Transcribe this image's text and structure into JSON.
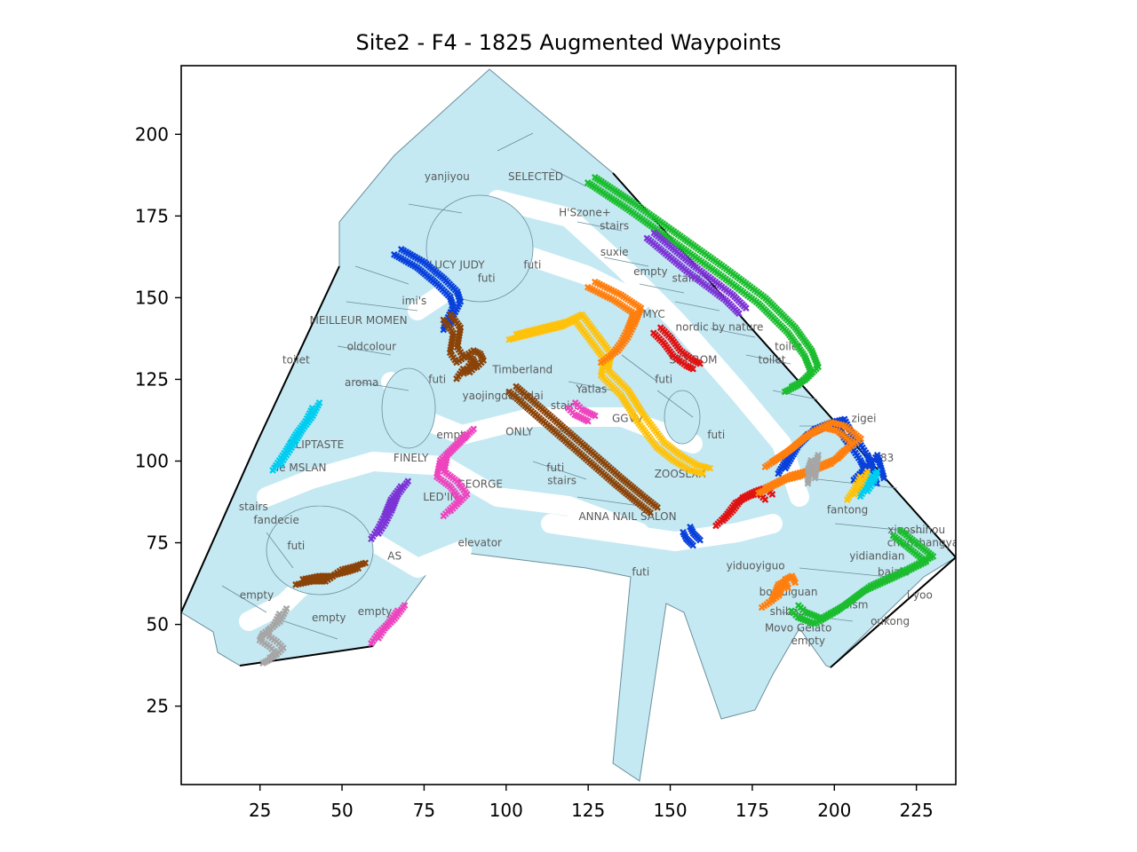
{
  "chart_data": {
    "type": "scatter",
    "title": "Site2 - F4 - 1825 Augmented Waypoints",
    "xlabel": "",
    "ylabel": "",
    "xlim": [
      1,
      237
    ],
    "ylim": [
      1,
      221
    ],
    "xticks": [
      25,
      50,
      75,
      100,
      125,
      150,
      175,
      200,
      225
    ],
    "yticks": [
      25,
      50,
      75,
      100,
      125,
      150,
      175,
      200
    ],
    "grid": false,
    "floor_color": "#c4e9f3",
    "floor_edge": "#6a8f9a",
    "shop_labels": [
      {
        "text": "yanjiyou",
        "x": 82,
        "y": 187
      },
      {
        "text": "SELECTED",
        "x": 109,
        "y": 187
      },
      {
        "text": "H'Szone+",
        "x": 124,
        "y": 176
      },
      {
        "text": "stairs",
        "x": 133,
        "y": 172
      },
      {
        "text": "suxie",
        "x": 133,
        "y": 164
      },
      {
        "text": "empty",
        "x": 144,
        "y": 158
      },
      {
        "text": "stairs",
        "x": 155,
        "y": 156
      },
      {
        "text": "LUCY JUDY",
        "x": 85,
        "y": 160
      },
      {
        "text": "futi",
        "x": 108,
        "y": 160
      },
      {
        "text": "futi",
        "x": 94,
        "y": 156
      },
      {
        "text": "imi's",
        "x": 72,
        "y": 149
      },
      {
        "text": "MEILLEUR MOMEN",
        "x": 55,
        "y": 143
      },
      {
        "text": "MYC",
        "x": 145,
        "y": 145
      },
      {
        "text": "nordic by nature",
        "x": 165,
        "y": 141
      },
      {
        "text": "oldcolour",
        "x": 59,
        "y": 135
      },
      {
        "text": "toilet",
        "x": 36,
        "y": 131
      },
      {
        "text": "SETIROM",
        "x": 157,
        "y": 131
      },
      {
        "text": "toilet",
        "x": 181,
        "y": 131
      },
      {
        "text": "toilet",
        "x": 186,
        "y": 135
      },
      {
        "text": "Timberland",
        "x": 105,
        "y": 128
      },
      {
        "text": "aroma",
        "x": 56,
        "y": 124
      },
      {
        "text": "futi",
        "x": 79,
        "y": 125
      },
      {
        "text": "futi",
        "x": 148,
        "y": 125
      },
      {
        "text": "yaojingdekudai",
        "x": 99,
        "y": 120
      },
      {
        "text": "Yatlas",
        "x": 126,
        "y": 122
      },
      {
        "text": "stairs",
        "x": 118,
        "y": 117
      },
      {
        "text": "GGVV",
        "x": 137,
        "y": 113
      },
      {
        "text": "zigei",
        "x": 209,
        "y": 113
      },
      {
        "text": "ONLY",
        "x": 104,
        "y": 109
      },
      {
        "text": "empty",
        "x": 84,
        "y": 108
      },
      {
        "text": "futi",
        "x": 164,
        "y": 108
      },
      {
        "text": "ULIPTASTE",
        "x": 42,
        "y": 105
      },
      {
        "text": "FINELY",
        "x": 71,
        "y": 101
      },
      {
        "text": "1983",
        "x": 214,
        "y": 101
      },
      {
        "text": "ne MSLAN",
        "x": 37,
        "y": 98
      },
      {
        "text": "futi",
        "x": 115,
        "y": 98
      },
      {
        "text": "ZOOSLXX",
        "x": 153,
        "y": 96
      },
      {
        "text": "stairs",
        "x": 117,
        "y": 94
      },
      {
        "text": "GEORGE",
        "x": 92,
        "y": 93
      },
      {
        "text": "LED'IN",
        "x": 80,
        "y": 89
      },
      {
        "text": "stairs",
        "x": 23,
        "y": 86
      },
      {
        "text": "fantong",
        "x": 204,
        "y": 85
      },
      {
        "text": "fandecie",
        "x": 30,
        "y": 82
      },
      {
        "text": "ANNA NAIL SALON",
        "x": 137,
        "y": 83
      },
      {
        "text": "xiaoshihou",
        "x": 225,
        "y": 79
      },
      {
        "text": "chunshangyan",
        "x": 228,
        "y": 75
      },
      {
        "text": "futi",
        "x": 36,
        "y": 74
      },
      {
        "text": "elevator",
        "x": 92,
        "y": 75
      },
      {
        "text": "yidiandian",
        "x": 213,
        "y": 71
      },
      {
        "text": "AS",
        "x": 66,
        "y": 71
      },
      {
        "text": "yiduoyiguo",
        "x": 176,
        "y": 68
      },
      {
        "text": "baizhi",
        "x": 218,
        "y": 66
      },
      {
        "text": "futi",
        "x": 141,
        "y": 66
      },
      {
        "text": "bowulguan",
        "x": 186,
        "y": 60
      },
      {
        "text": "i yoo",
        "x": 226,
        "y": 59
      },
      {
        "text": "empty",
        "x": 24,
        "y": 59
      },
      {
        "text": "lism",
        "x": 207,
        "y": 56
      },
      {
        "text": "empty",
        "x": 60,
        "y": 54
      },
      {
        "text": "shibazi",
        "x": 186,
        "y": 54
      },
      {
        "text": "oukong",
        "x": 217,
        "y": 51
      },
      {
        "text": "empty",
        "x": 46,
        "y": 52
      },
      {
        "text": "Movo Gelato",
        "x": 189,
        "y": 49
      },
      {
        "text": "empty",
        "x": 192,
        "y": 45
      }
    ],
    "series": [
      {
        "color": "#1bbd2f",
        "x": [
          126,
          138,
          152,
          166,
          178,
          187,
          192,
          194,
          190,
          186
        ],
        "y": [
          186,
          178,
          168,
          158,
          149,
          140,
          133,
          128,
          124,
          122
        ]
      },
      {
        "color": "#7c34d6",
        "x": [
          144,
          156,
          168,
          172
        ],
        "y": [
          169,
          159,
          150,
          146
        ]
      },
      {
        "color": "#1bbd2f",
        "x": [
          219,
          224,
          229,
          221,
          210,
          202,
          195,
          190,
          188
        ],
        "y": [
          78,
          74,
          70,
          66,
          61,
          55,
          51,
          53,
          55
        ]
      },
      {
        "color": "#0840dc",
        "x": [
          67,
          74,
          80,
          84,
          85,
          83,
          82
        ],
        "y": [
          164,
          160,
          155,
          151,
          148,
          144,
          141
        ]
      },
      {
        "color": "#8b4308",
        "x": [
          82,
          85,
          84,
          86,
          89,
          91,
          92,
          90,
          88,
          86
        ],
        "y": [
          144,
          140,
          134,
          131,
          133,
          132,
          130,
          128,
          129,
          126
        ]
      },
      {
        "color": "#ffc20a",
        "x": [
          102,
          110,
          118,
          122,
          128,
          131,
          130,
          136,
          141,
          147,
          152,
          157,
          161
        ],
        "y": [
          138,
          140,
          142,
          144,
          136,
          132,
          127,
          121,
          113,
          105,
          101,
          98,
          97
        ]
      },
      {
        "color": "#ff7f0e",
        "x": [
          126,
          134,
          140,
          138,
          136,
          133,
          130
        ],
        "y": [
          154,
          150,
          146,
          141,
          137,
          133,
          131
        ]
      },
      {
        "color": "#e01212",
        "x": [
          146,
          149,
          152,
          156,
          158
        ],
        "y": [
          140,
          137,
          133,
          130,
          129
        ]
      },
      {
        "color": "#8b4308",
        "x": [
          102,
          110,
          118,
          126,
          134,
          140,
          145
        ],
        "y": [
          122,
          115,
          108,
          101,
          94,
          89,
          85
        ]
      },
      {
        "color": "#ee45bf",
        "x": [
          120,
          122,
          124,
          126
        ],
        "y": [
          117,
          115,
          114,
          113
        ]
      },
      {
        "color": "#ee45bf",
        "x": [
          89,
          85,
          81,
          80,
          84,
          87,
          84,
          82
        ],
        "y": [
          109,
          105,
          101,
          96,
          93,
          89,
          86,
          84
        ]
      },
      {
        "color": "#00cdf0",
        "x": [
          42,
          40,
          37,
          34,
          32,
          30
        ],
        "y": [
          117,
          113,
          109,
          104,
          101,
          98
        ]
      },
      {
        "color": "#7c34d6",
        "x": [
          69,
          66,
          64,
          62,
          60
        ],
        "y": [
          93,
          89,
          84,
          80,
          77
        ]
      },
      {
        "color": "#8b4308",
        "x": [
          37,
          42,
          46,
          49,
          53,
          56
        ],
        "y": [
          63,
          64,
          64,
          66,
          67,
          68
        ]
      },
      {
        "color": "#ee45bf",
        "x": [
          68,
          65,
          62,
          60
        ],
        "y": [
          55,
          51,
          48,
          45
        ]
      },
      {
        "color": "#a6a6a6",
        "x": [
          32,
          30,
          27,
          26,
          29,
          31,
          29,
          27
        ],
        "y": [
          54,
          50,
          48,
          46,
          44,
          42,
          40,
          39
        ]
      },
      {
        "color": "#e01212",
        "x": [
          165,
          168,
          171,
          175,
          178,
          180
        ],
        "y": [
          81,
          84,
          88,
          90,
          91,
          89
        ]
      },
      {
        "color": "#0840dc",
        "x": [
          155,
          156,
          157,
          158
        ],
        "y": [
          79,
          77,
          76,
          75
        ]
      },
      {
        "color": "#ff7f0e",
        "x": [
          179,
          182,
          184,
          186,
          187
        ],
        "y": [
          56,
          58,
          63,
          64,
          62
        ]
      },
      {
        "color": "#0840dc",
        "x": [
          184,
          188,
          193,
          198,
          202,
          204,
          207,
          209,
          210
        ],
        "y": [
          97,
          104,
          109,
          111,
          112,
          108,
          104,
          101,
          99
        ]
      },
      {
        "color": "#ff7f0e",
        "x": [
          180,
          186,
          192,
          198,
          202,
          207,
          204,
          200,
          195,
          190,
          186,
          182,
          178
        ],
        "y": [
          99,
          103,
          108,
          111,
          110,
          106,
          104,
          100,
          98,
          96,
          95,
          93,
          91
        ]
      },
      {
        "color": "#0840dc",
        "x": [
          207,
          210,
          212,
          214
        ],
        "y": [
          95,
          98,
          101,
          94
        ]
      },
      {
        "color": "#00cdf0",
        "x": [
          209,
          210,
          212,
          211,
          209
        ],
        "y": [
          91,
          94,
          96,
          93,
          90
        ]
      },
      {
        "color": "#ffc20a",
        "x": [
          205,
          207,
          209
        ],
        "y": [
          89,
          92,
          96
        ]
      },
      {
        "color": "#a6a6a6",
        "x": [
          193,
          194,
          193
        ],
        "y": [
          98,
          101,
          94
        ]
      }
    ]
  }
}
